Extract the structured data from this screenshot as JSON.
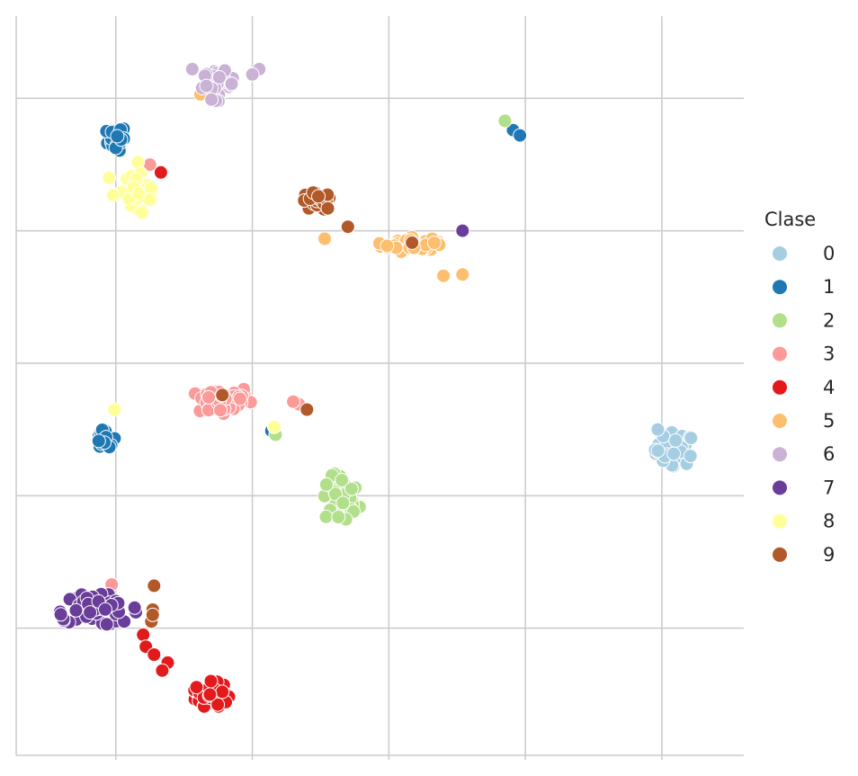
{
  "chart_data": {
    "type": "scatter",
    "title": "",
    "xlabel": "",
    "ylabel": "",
    "xlim": [
      -0.73,
      4.6
    ],
    "ylim": [
      -0.96,
      4.62
    ],
    "xticks": [
      0,
      1,
      2,
      3,
      4
    ],
    "yticks": [
      0,
      1,
      2,
      3,
      4
    ],
    "show_tick_labels": false,
    "grid": true,
    "legend": {
      "title": "Clase",
      "position": "right"
    },
    "series": [
      {
        "name": "0",
        "color": "#a6cee3",
        "clusters": [
          {
            "cx": 4.1,
            "cy": 1.35,
            "rx": 0.15,
            "ry": 0.13,
            "n": 45
          }
        ],
        "points": [
          [
            3.97,
            1.5
          ]
        ]
      },
      {
        "name": "1",
        "color": "#1f78b4",
        "clusters": [
          {
            "cx": 0.0,
            "cy": 3.7,
            "rx": 0.08,
            "ry": 0.1,
            "n": 20
          },
          {
            "cx": -0.08,
            "cy": 1.42,
            "rx": 0.08,
            "ry": 0.08,
            "n": 12
          }
        ],
        "points": [
          [
            2.91,
            3.76
          ],
          [
            2.96,
            3.72
          ],
          [
            1.14,
            1.49
          ]
        ]
      },
      {
        "name": "2",
        "color": "#b2df8a",
        "clusters": [
          {
            "cx": 1.65,
            "cy": 0.97,
            "rx": 0.14,
            "ry": 0.21,
            "n": 35
          }
        ],
        "points": [
          [
            2.85,
            3.83
          ],
          [
            1.17,
            1.46
          ]
        ]
      },
      {
        "name": "3",
        "color": "#fb9a99",
        "clusters": [
          {
            "cx": 0.78,
            "cy": 1.72,
            "rx": 0.22,
            "ry": 0.12,
            "n": 45
          }
        ],
        "points": [
          [
            0.25,
            3.5
          ],
          [
            -0.27,
            0.14
          ],
          [
            -0.03,
            0.33
          ],
          [
            1.34,
            1.69
          ],
          [
            1.3,
            1.71
          ]
        ]
      },
      {
        "name": "4",
        "color": "#e31a1c",
        "clusters": [
          {
            "cx": 0.7,
            "cy": -0.5,
            "rx": 0.13,
            "ry": 0.1,
            "n": 50
          }
        ],
        "points": [
          [
            0.33,
            3.44
          ],
          [
            0.2,
            -0.05
          ],
          [
            0.22,
            -0.14
          ],
          [
            0.38,
            -0.26
          ],
          [
            0.28,
            -0.2
          ],
          [
            0.34,
            -0.32
          ]
        ]
      },
      {
        "name": "5",
        "color": "#fdbf6f",
        "clusters": [
          {
            "cx": 2.15,
            "cy": 2.9,
            "rx": 0.22,
            "ry": 0.06,
            "n": 45
          }
        ],
        "points": [
          [
            0.62,
            4.03
          ],
          [
            1.53,
            2.94
          ],
          [
            2.4,
            2.66
          ],
          [
            2.54,
            2.67
          ]
        ]
      },
      {
        "name": "6",
        "color": "#cab2d6",
        "clusters": [
          {
            "cx": 0.75,
            "cy": 4.1,
            "rx": 0.12,
            "ry": 0.12,
            "n": 40
          }
        ],
        "points": [
          [
            1.05,
            4.22
          ],
          [
            1.0,
            4.18
          ],
          [
            0.56,
            4.22
          ]
        ]
      },
      {
        "name": "7",
        "color": "#6a3d9a",
        "clusters": [
          {
            "cx": -0.15,
            "cy": 0.14,
            "rx": 0.32,
            "ry": 0.12,
            "n": 50
          }
        ],
        "points": [
          [
            2.54,
            3.0
          ]
        ]
      },
      {
        "name": "8",
        "color": "#ffff99",
        "clusters": [
          {
            "cx": 0.18,
            "cy": 3.3,
            "rx": 0.14,
            "ry": 0.22,
            "n": 35
          }
        ],
        "points": [
          [
            -0.05,
            3.4
          ],
          [
            -0.02,
            3.27
          ],
          [
            1.16,
            1.52
          ],
          [
            -0.01,
            1.65
          ]
        ]
      },
      {
        "name": "9",
        "color": "#b15928",
        "clusters": [
          {
            "cx": 1.47,
            "cy": 3.22,
            "rx": 0.12,
            "ry": 0.07,
            "n": 40
          }
        ],
        "points": [
          [
            1.7,
            3.03
          ],
          [
            2.17,
            2.91
          ],
          [
            0.78,
            1.76
          ],
          [
            1.4,
            1.65
          ],
          [
            0.28,
            0.32
          ],
          [
            0.26,
            0.05
          ],
          [
            0.27,
            0.14
          ],
          [
            0.27,
            0.1
          ]
        ]
      }
    ]
  }
}
